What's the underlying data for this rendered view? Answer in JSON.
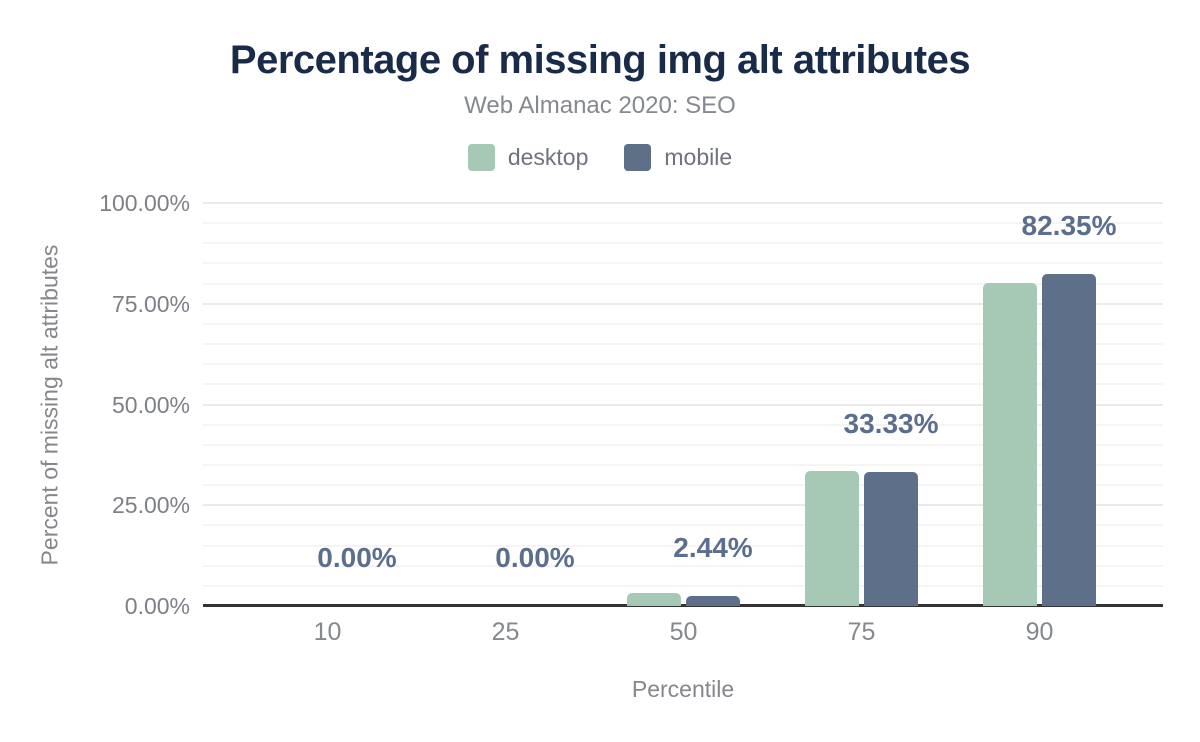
{
  "colors": {
    "title_color": "#1a2b49",
    "subtitle_color": "#85898f",
    "axis_text": "#7d8187",
    "value_label": "#5b6e8e",
    "axis_line": "#333333",
    "grid_major": "#eaeaea",
    "grid_minor": "#f5f5f5",
    "bg": "#ffffff"
  },
  "chart_data": {
    "type": "bar",
    "title": "Percentage of missing img alt attributes",
    "subtitle": "Web Almanac 2020: SEO",
    "xlabel": "Percentile",
    "ylabel": "Percent of missing alt attributes",
    "categories": [
      "10",
      "25",
      "50",
      "75",
      "90"
    ],
    "series": [
      {
        "name": "desktop",
        "color": "#a5c9b5",
        "values": [
          0,
          0,
          3.2,
          33.4,
          80.2
        ]
      },
      {
        "name": "mobile",
        "color": "#5e7089",
        "values": [
          0,
          0,
          2.44,
          33.33,
          82.35
        ]
      }
    ],
    "value_labels": {
      "labeled_series": "mobile",
      "labels": [
        "0.00%",
        "0.00%",
        "2.44%",
        "33.33%",
        "82.35%"
      ]
    },
    "y_ticks": [
      0,
      25,
      50,
      75,
      100
    ],
    "y_tick_labels": [
      "0.00%",
      "25.00%",
      "50.00%",
      "75.00%",
      "100.00%"
    ],
    "ylim": [
      0,
      100
    ],
    "grid": {
      "minor_step": 5,
      "major_step": 25,
      "grid_on": true
    },
    "legend_position": "top"
  }
}
